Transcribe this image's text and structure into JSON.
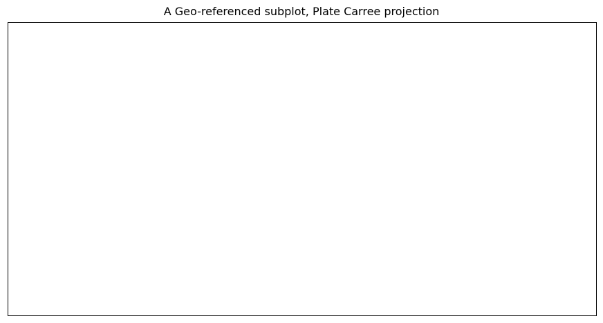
{
  "chart_data": {
    "type": "map",
    "title": "A Geo-referenced subplot, Plate Carree projection",
    "projection": "Plate Carree",
    "grid": false,
    "series": []
  }
}
